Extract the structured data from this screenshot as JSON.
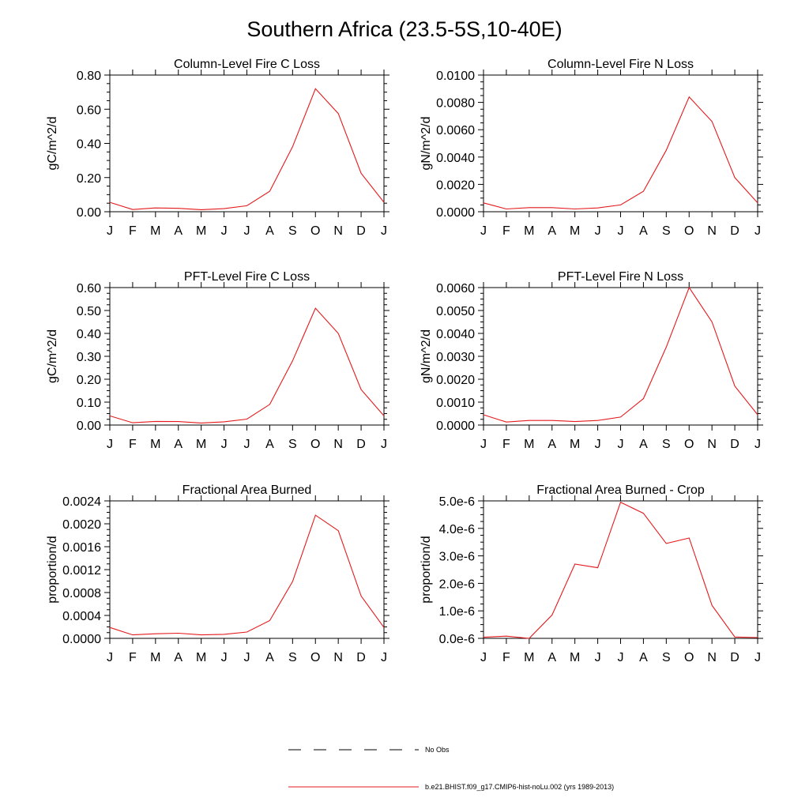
{
  "figure": {
    "title": "Southern Africa (23.5-5S,10-40E)",
    "series_color": "#e41a1c"
  },
  "legend": [
    {
      "label": "No Obs",
      "style": "dashed",
      "color": "#000000"
    },
    {
      "label": "b.e21.BHIST.f09_g17.CMIP6-hist-noLu.002 (yrs 1989-2013)",
      "style": "solid",
      "color": "#e41a1c"
    }
  ],
  "chart_data": [
    {
      "type": "line",
      "title": "Column-Level Fire C Loss",
      "ylabel": "gC/m^2/d",
      "categories": [
        "J",
        "F",
        "M",
        "A",
        "M",
        "J",
        "J",
        "A",
        "S",
        "O",
        "N",
        "D",
        "J"
      ],
      "ylim": [
        0,
        0.8
      ],
      "yticks": [
        "0.00",
        "0.20",
        "0.40",
        "0.60",
        "0.80"
      ],
      "series": [
        {
          "values": [
            0.055,
            0.013,
            0.022,
            0.02,
            0.012,
            0.018,
            0.035,
            0.12,
            0.38,
            0.72,
            0.575,
            0.225,
            0.055
          ]
        }
      ]
    },
    {
      "type": "line",
      "title": "Column-Level Fire N Loss",
      "ylabel": "gN/m^2/d",
      "categories": [
        "J",
        "F",
        "M",
        "A",
        "M",
        "J",
        "J",
        "A",
        "S",
        "O",
        "N",
        "D",
        "J"
      ],
      "ylim": [
        0,
        0.01
      ],
      "yticks": [
        "0.0000",
        "0.0020",
        "0.0040",
        "0.0060",
        "0.0080",
        "0.0100"
      ],
      "series": [
        {
          "values": [
            0.00065,
            0.0002,
            0.0003,
            0.0003,
            0.0002,
            0.00028,
            0.0005,
            0.0015,
            0.0045,
            0.0084,
            0.0066,
            0.0025,
            0.00065
          ]
        }
      ]
    },
    {
      "type": "line",
      "title": "PFT-Level Fire C Loss",
      "ylabel": "gC/m^2/d",
      "categories": [
        "J",
        "F",
        "M",
        "A",
        "M",
        "J",
        "J",
        "A",
        "S",
        "O",
        "N",
        "D",
        "J"
      ],
      "ylim": [
        0,
        0.6
      ],
      "yticks": [
        "0.00",
        "0.10",
        "0.20",
        "0.30",
        "0.40",
        "0.50",
        "0.60"
      ],
      "series": [
        {
          "values": [
            0.04,
            0.01,
            0.016,
            0.015,
            0.009,
            0.014,
            0.026,
            0.09,
            0.28,
            0.51,
            0.4,
            0.155,
            0.04
          ]
        }
      ]
    },
    {
      "type": "line",
      "title": "PFT-Level Fire N Loss",
      "ylabel": "gN/m^2/d",
      "categories": [
        "J",
        "F",
        "M",
        "A",
        "M",
        "J",
        "J",
        "A",
        "S",
        "O",
        "N",
        "D",
        "J"
      ],
      "ylim": [
        0,
        0.006
      ],
      "yticks": [
        "0.0000",
        "0.0010",
        "0.0020",
        "0.0030",
        "0.0040",
        "0.0050",
        "0.0060"
      ],
      "series": [
        {
          "values": [
            0.00045,
            0.00013,
            0.0002,
            0.0002,
            0.00015,
            0.0002,
            0.00035,
            0.00115,
            0.0034,
            0.006,
            0.0045,
            0.0017,
            0.00045
          ]
        }
      ]
    },
    {
      "type": "line",
      "title": "Fractional Area Burned",
      "ylabel": "proportion/d",
      "categories": [
        "J",
        "F",
        "M",
        "A",
        "M",
        "J",
        "J",
        "A",
        "S",
        "O",
        "N",
        "D",
        "J"
      ],
      "ylim": [
        0,
        0.0024
      ],
      "yticks": [
        "0.0000",
        "0.0004",
        "0.0008",
        "0.0012",
        "0.0016",
        "0.0020",
        "0.0024"
      ],
      "series": [
        {
          "values": [
            0.00019,
            6e-05,
            8e-05,
            9e-05,
            6e-05,
            7e-05,
            0.00011,
            0.00031,
            0.00099,
            0.00215,
            0.00188,
            0.00074,
            0.00019
          ]
        }
      ]
    },
    {
      "type": "line",
      "title": "Fractional Area Burned - Crop",
      "ylabel": "proportion/d",
      "categories": [
        "J",
        "F",
        "M",
        "A",
        "M",
        "J",
        "J",
        "A",
        "S",
        "O",
        "N",
        "D",
        "J"
      ],
      "ylim": [
        0,
        5e-06
      ],
      "yticks": [
        "0.0e-6",
        "1.0e-6",
        "2.0e-6",
        "3.0e-6",
        "4.0e-6",
        "5.0e-6"
      ],
      "series": [
        {
          "values": [
            4e-08,
            8e-08,
            0,
            8.5e-07,
            2.7e-06,
            2.57e-06,
            4.95e-06,
            4.55e-06,
            3.45e-06,
            3.65e-06,
            1.2e-06,
            5e-08,
            3e-08
          ]
        }
      ]
    }
  ]
}
